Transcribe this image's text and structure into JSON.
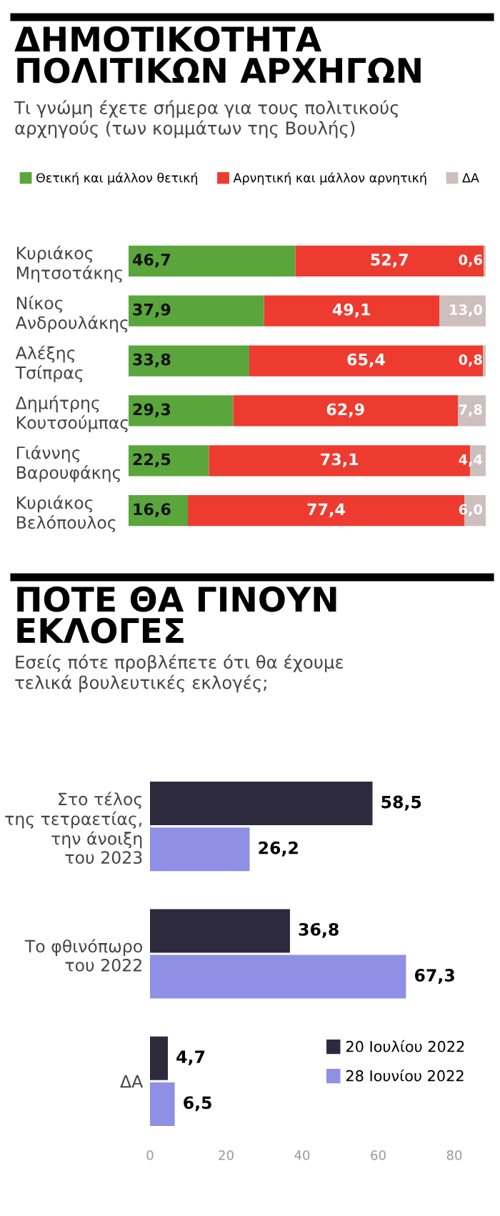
{
  "chart_data": [
    {
      "type": "bar",
      "orientation": "horizontal",
      "stacked": true,
      "title": "ΔΗΜΟΤΙΚΟΤΗΤΑ\nΠΟΛΙΤΙΚΩΝ ΑΡΧΗΓΩΝ",
      "subtitle": "Τι γνώμη έχετε σήμερα για τους πολιτικούς\nαρχηγούς (των κομμάτων της Βουλής)",
      "categories": [
        "Κυριάκος\nΜητσοτάκης",
        "Νίκος\nΑνδρουλάκης",
        "Αλέξης\nΤσίπρας",
        "Δημήτρης\nΚουτσούμπας",
        "Γιάννης\nΒαρουφάκης",
        "Κυριάκος\nΒελόπουλος"
      ],
      "series": [
        {
          "name": "Θετική και μάλλον θετική",
          "color": "#5aa63c",
          "values": [
            46.7,
            37.9,
            33.8,
            29.3,
            22.5,
            16.6
          ],
          "value_labels": [
            "46,7",
            "37,9",
            "33,8",
            "29,3",
            "22,5",
            "16,6"
          ]
        },
        {
          "name": "Αρνητική και μάλλον αρνητική",
          "color": "#ee3b2f",
          "values": [
            52.7,
            49.1,
            65.4,
            62.9,
            73.1,
            77.4
          ],
          "value_labels": [
            "52,7",
            "49,1",
            "65,4",
            "62,9",
            "73,1",
            "77,4"
          ]
        },
        {
          "name": "ΔΑ",
          "color": "#cdbfbd",
          "values": [
            0.6,
            13.0,
            0.8,
            7.8,
            4.4,
            6.0
          ],
          "value_labels": [
            "0,6",
            "13,0",
            "0,8",
            "7,8",
            "4,4",
            "6,0"
          ]
        }
      ],
      "legend": "top",
      "tick_labels": "y",
      "grid": false
    },
    {
      "type": "bar",
      "orientation": "horizontal",
      "title": "ΠΟΤΕ ΘΑ ΓΙΝΟΥΝ\nΕΚΛΟΓΕΣ",
      "subtitle": "Εσείς πότε προβλέπετε ότι θα έχουμε\nτελικά βουλευτικές εκλογές;",
      "categories": [
        "Στο τέλος\nτης τετραετίας,\nτην άνοιξη\nτου 2023",
        "Το φθινόπωρο\nτου 2022",
        "ΔΑ"
      ],
      "series": [
        {
          "name": "20 Ιουλίου 2022",
          "color": "#2e2a3e",
          "values": [
            58.5,
            36.8,
            4.7
          ],
          "value_labels": [
            "58,5",
            "36,8",
            "4,7"
          ]
        },
        {
          "name": "28 Ιουνίου 2022",
          "color": "#8f8fe6",
          "values": [
            26.2,
            67.3,
            6.5
          ],
          "value_labels": [
            "26,2",
            "67,3",
            "6,5"
          ]
        }
      ],
      "xlim": [
        0,
        80
      ],
      "xticks": [
        0,
        20,
        40,
        60,
        80
      ],
      "legend": "lower right",
      "grid": false
    }
  ]
}
